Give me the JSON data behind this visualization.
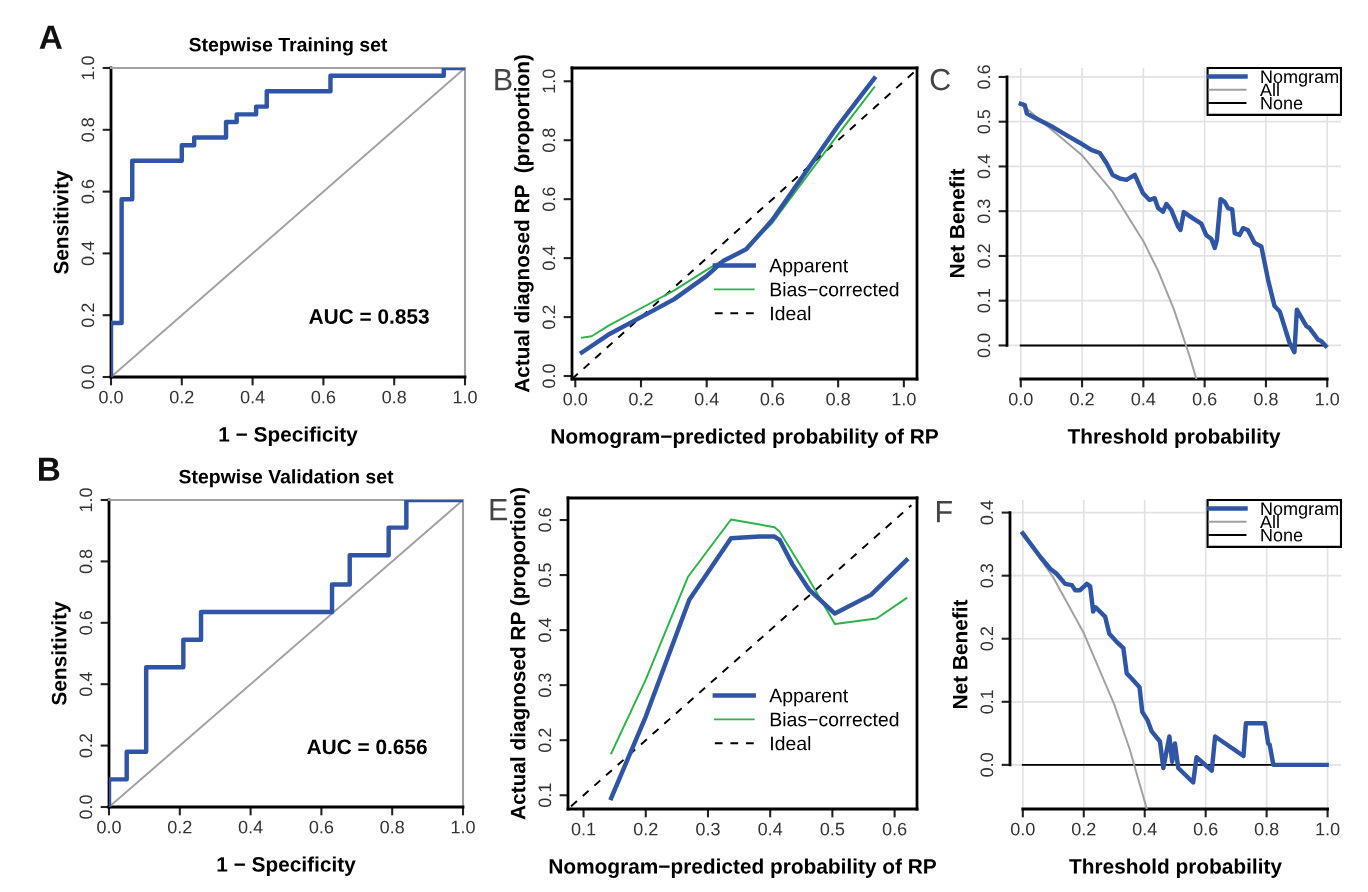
{
  "chart_data": [
    {
      "type": "line",
      "title": "Stepwise Training set",
      "xlabel": "1 − Specificity",
      "ylabel": "Sensitivity",
      "annotations": [
        "A",
        "AUC = 0.853"
      ],
      "xlim": [
        0,
        1
      ],
      "ylim": [
        0,
        1
      ],
      "xticks": [
        {
          "value": 0,
          "label": "0.0"
        },
        {
          "value": 0.2,
          "label": "0.2"
        },
        {
          "value": 0.4,
          "label": "0.4"
        },
        {
          "value": 0.6,
          "label": "0.6"
        },
        {
          "value": 0.8,
          "label": "0.8"
        },
        {
          "value": 1,
          "label": "1.0"
        }
      ],
      "yticks": [
        {
          "value": 0,
          "label": "0.0"
        },
        {
          "value": 0.2,
          "label": "0.2"
        },
        {
          "value": 0.4,
          "label": "0.4"
        },
        {
          "value": 0.6,
          "label": "0.6"
        },
        {
          "value": 0.8,
          "label": "0.8"
        },
        {
          "value": 1,
          "label": "1.0"
        }
      ],
      "series": [
        {
          "color": "#2f55a4",
          "x": [
            0,
            0,
            0.03,
            0.03,
            0.06,
            0.06,
            0.2,
            0.2,
            0.235,
            0.235,
            0.325,
            0.325,
            0.355,
            0.355,
            0.41,
            0.41,
            0.44,
            0.44,
            0.62,
            0.62,
            0.94,
            0.94,
            1
          ],
          "values": [
            0,
            0.175,
            0.175,
            0.575,
            0.575,
            0.7,
            0.7,
            0.75,
            0.75,
            0.775,
            0.775,
            0.825,
            0.825,
            0.85,
            0.85,
            0.875,
            0.875,
            0.925,
            0.925,
            0.975,
            0.975,
            1,
            1
          ]
        },
        {
          "color": "#a0a0a0",
          "x": [
            0,
            1
          ],
          "values": [
            0,
            1
          ]
        }
      ]
    },
    {
      "type": "line",
      "xlabel": "Nomogram−predicted probability of RP",
      "ylabel": "Actual diagnosed RP  (proportion)",
      "annotations": [
        "B"
      ],
      "legend": "bottom right",
      "xlim": [
        -0.01,
        1.04
      ],
      "ylim": [
        -0.01,
        1.045
      ],
      "xticks": [
        {
          "value": 0,
          "label": "0.0"
        },
        {
          "value": 0.2,
          "label": "0.2"
        },
        {
          "value": 0.4,
          "label": "0.4"
        },
        {
          "value": 0.6,
          "label": "0.6"
        },
        {
          "value": 0.8,
          "label": "0.8"
        },
        {
          "value": 1,
          "label": "1.0"
        }
      ],
      "yticks": [
        {
          "value": 0,
          "label": "0.0"
        },
        {
          "value": 0.2,
          "label": "0.2"
        },
        {
          "value": 0.4,
          "label": "0.4"
        },
        {
          "value": 0.6,
          "label": "0.6"
        },
        {
          "value": 0.8,
          "label": "0.8"
        },
        {
          "value": 1,
          "label": "1.0"
        }
      ],
      "series": [
        {
          "name": "Apparent",
          "color": "#2f55a4",
          "x": [
            0.02,
            0.1,
            0.2,
            0.3,
            0.4,
            0.45,
            0.52,
            0.6,
            0.7,
            0.8,
            0.91
          ],
          "values": [
            0.08,
            0.14,
            0.2,
            0.26,
            0.34,
            0.39,
            0.43,
            0.53,
            0.69,
            0.85,
            1.01
          ]
        },
        {
          "name": "Bias−corrected",
          "color": "#2db34a",
          "x": [
            0.02,
            0.05,
            0.1,
            0.2,
            0.3,
            0.4,
            0.46,
            0.52,
            0.6,
            0.7,
            0.8,
            0.91
          ],
          "values": [
            0.13,
            0.135,
            0.17,
            0.23,
            0.29,
            0.36,
            0.4,
            0.43,
            0.52,
            0.67,
            0.82,
            0.98
          ]
        },
        {
          "name": "Ideal",
          "color": "#000000",
          "line_style": "dashed",
          "x": [
            -0.01,
            1.04
          ],
          "values": [
            -0.01,
            1.04
          ]
        }
      ]
    },
    {
      "type": "line",
      "xlabel": "Threshold probability",
      "ylabel": "Net Benefit",
      "annotations": [
        "C"
      ],
      "legend": "top right",
      "grid": true,
      "xlim": [
        -0.045,
        1.045
      ],
      "ylim": [
        -0.075,
        0.62
      ],
      "xticks": [
        {
          "value": 0,
          "label": "0.0"
        },
        {
          "value": 0.2,
          "label": "0.2"
        },
        {
          "value": 0.4,
          "label": "0.4"
        },
        {
          "value": 0.6,
          "label": "0.6"
        },
        {
          "value": 0.8,
          "label": "0.8"
        },
        {
          "value": 1,
          "label": "1.0"
        }
      ],
      "yticks": [
        {
          "value": 0,
          "label": "0.0"
        },
        {
          "value": 0.1,
          "label": "0.1"
        },
        {
          "value": 0.2,
          "label": "0.2"
        },
        {
          "value": 0.3,
          "label": "0.3"
        },
        {
          "value": 0.4,
          "label": "0.4"
        },
        {
          "value": 0.5,
          "label": "0.5"
        },
        {
          "value": 0.6,
          "label": "0.6"
        }
      ],
      "series": [
        {
          "name": "Nomgram",
          "color": "#2f55a4",
          "x": [
            0,
            0.013,
            0.02,
            0.05,
            0.105,
            0.149,
            0.192,
            0.23,
            0.258,
            0.28,
            0.3,
            0.323,
            0.345,
            0.372,
            0.399,
            0.42,
            0.437,
            0.448,
            0.464,
            0.475,
            0.491,
            0.513,
            0.521,
            0.532,
            0.562,
            0.589,
            0.605,
            0.622,
            0.633,
            0.64,
            0.652,
            0.665,
            0.676,
            0.69,
            0.698,
            0.714,
            0.725,
            0.741,
            0.763,
            0.785,
            0.807,
            0.828,
            0.845,
            0.877,
            0.893,
            0.901,
            0.932,
            0.942,
            0.97,
            0.98,
            0.995
          ],
          "values": [
            0.54,
            0.537,
            0.518,
            0.507,
            0.488,
            0.47,
            0.453,
            0.437,
            0.43,
            0.407,
            0.381,
            0.373,
            0.37,
            0.381,
            0.34,
            0.325,
            0.329,
            0.307,
            0.299,
            0.316,
            0.303,
            0.266,
            0.258,
            0.298,
            0.284,
            0.272,
            0.247,
            0.238,
            0.218,
            0.236,
            0.327,
            0.321,
            0.307,
            0.304,
            0.251,
            0.247,
            0.262,
            0.258,
            0.229,
            0.221,
            0.147,
            0.088,
            0.076,
            0.006,
            -0.015,
            0.08,
            0.043,
            0.039,
            0.013,
            0.01,
            -0.001
          ]
        },
        {
          "name": "All",
          "color": "#a0a0a0",
          "x": [
            0,
            0.2,
            0.3,
            0.4,
            0.45,
            0.5,
            0.55,
            0.573
          ],
          "values": [
            0.54,
            0.425,
            0.343,
            0.233,
            0.164,
            0.08,
            -0.022,
            -0.075
          ]
        },
        {
          "name": "None",
          "color": "#000000",
          "x": [
            0,
            0.99
          ],
          "values": [
            0,
            0
          ]
        }
      ]
    },
    {
      "type": "line",
      "title": "Stepwise Validation set",
      "xlabel": "1 − Specificity",
      "ylabel": "Sensitivity",
      "annotations": [
        "B",
        "AUC = 0.656"
      ],
      "xlim": [
        0,
        1
      ],
      "ylim": [
        0,
        1
      ],
      "xticks": [
        {
          "value": 0,
          "label": "0.0"
        },
        {
          "value": 0.2,
          "label": "0.2"
        },
        {
          "value": 0.4,
          "label": "0.4"
        },
        {
          "value": 0.6,
          "label": "0.6"
        },
        {
          "value": 0.8,
          "label": "0.8"
        },
        {
          "value": 1,
          "label": "1.0"
        }
      ],
      "yticks": [
        {
          "value": 0,
          "label": "0.0"
        },
        {
          "value": 0.2,
          "label": "0.2"
        },
        {
          "value": 0.4,
          "label": "0.4"
        },
        {
          "value": 0.6,
          "label": "0.6"
        },
        {
          "value": 0.8,
          "label": "0.8"
        },
        {
          "value": 1,
          "label": "1.0"
        }
      ],
      "series": [
        {
          "color": "#2f55a4",
          "x": [
            0,
            0,
            0.05,
            0.05,
            0.105,
            0.105,
            0.21,
            0.21,
            0.26,
            0.26,
            0.63,
            0.63,
            0.68,
            0.68,
            0.79,
            0.79,
            0.84,
            0.84,
            1
          ],
          "values": [
            0,
            0.09,
            0.09,
            0.18,
            0.18,
            0.455,
            0.455,
            0.545,
            0.545,
            0.635,
            0.635,
            0.725,
            0.725,
            0.82,
            0.82,
            0.91,
            0.91,
            1,
            1
          ]
        },
        {
          "color": "#a0a0a0",
          "x": [
            0,
            1
          ],
          "values": [
            0,
            1
          ]
        }
      ]
    },
    {
      "type": "line",
      "xlabel": "Nomogram−predicted probability of RP",
      "ylabel": "Actual diagnosed RP (proportion)",
      "annotations": [
        "E"
      ],
      "legend": "bottom right",
      "xlim": [
        0.075,
        0.636
      ],
      "ylim": [
        0.075,
        0.64
      ],
      "xticks": [
        0.1,
        0.2,
        0.3,
        0.4,
        0.5,
        0.6
      ],
      "yticks": [
        0.1,
        0.2,
        0.3,
        0.4,
        0.5,
        0.6
      ],
      "series": [
        {
          "name": "Apparent",
          "color": "#2f55a4",
          "x": [
            0.1445,
            0.2,
            0.27,
            0.337,
            0.383,
            0.407,
            0.415,
            0.436,
            0.463,
            0.504,
            0.562,
            0.619
          ],
          "values": [
            0.095,
            0.243,
            0.455,
            0.567,
            0.57,
            0.57,
            0.564,
            0.519,
            0.473,
            0.43,
            0.464,
            0.527
          ]
        },
        {
          "name": "Bias−corrected",
          "color": "#2db34a",
          "x": [
            0.1445,
            0.2,
            0.268,
            0.337,
            0.407,
            0.415,
            0.463,
            0.504,
            0.571,
            0.619
          ],
          "values": [
            0.176,
            0.31,
            0.497,
            0.601,
            0.587,
            0.579,
            0.491,
            0.411,
            0.421,
            0.458
          ]
        },
        {
          "name": "Ideal",
          "color": "#000000",
          "line_style": "dashed",
          "x": [
            0.08,
            0.627
          ],
          "values": [
            0.08,
            0.627
          ]
        }
      ]
    },
    {
      "type": "line",
      "xlabel": "Threshold probability",
      "ylabel": "Net Benefit",
      "annotations": [
        "F"
      ],
      "legend": "top right",
      "grid": true,
      "xlim": [
        -0.042,
        1.044
      ],
      "ylim": [
        -0.07,
        0.42
      ],
      "xticks": [
        {
          "value": 0,
          "label": "0.0"
        },
        {
          "value": 0.2,
          "label": "0.2"
        },
        {
          "value": 0.4,
          "label": "0.4"
        },
        {
          "value": 0.6,
          "label": "0.6"
        },
        {
          "value": 0.8,
          "label": "0.8"
        },
        {
          "value": 1,
          "label": "1.0"
        }
      ],
      "yticks": [
        {
          "value": 0,
          "label": "0.0"
        },
        {
          "value": 0.1,
          "label": "0.1"
        },
        {
          "value": 0.2,
          "label": "0.2"
        },
        {
          "value": 0.3,
          "label": "0.3"
        },
        {
          "value": 0.4,
          "label": "0.4"
        }
      ],
      "series": [
        {
          "name": "Nomgram",
          "color": "#2f55a4",
          "x": [
            0,
            0.057,
            0.09,
            0.111,
            0.139,
            0.161,
            0.172,
            0.188,
            0.21,
            0.221,
            0.231,
            0.238,
            0.27,
            0.284,
            0.308,
            0.33,
            0.341,
            0.357,
            0.383,
            0.392,
            0.409,
            0.423,
            0.45,
            0.461,
            0.481,
            0.49,
            0.499,
            0.51,
            0.559,
            0.57,
            0.62,
            0.631,
            0.724,
            0.732,
            0.795,
            0.805,
            0.81,
            0.822,
            0.997
          ],
          "values": [
            0.367,
            0.33,
            0.311,
            0.303,
            0.287,
            0.285,
            0.277,
            0.277,
            0.287,
            0.283,
            0.243,
            0.25,
            0.235,
            0.208,
            0.195,
            0.185,
            0.145,
            0.137,
            0.123,
            0.084,
            0.071,
            0.053,
            0.037,
            -0.005,
            0.045,
            0.005,
            0.034,
            -0.005,
            -0.028,
            0.012,
            -0.009,
            0.045,
            0.014,
            0.066,
            0.066,
            0.034,
            0.032,
            0,
            0
          ]
        },
        {
          "name": "All",
          "color": "#a0a0a0",
          "x": [
            0,
            0.1,
            0.2,
            0.3,
            0.35,
            0.407
          ],
          "values": [
            0.367,
            0.297,
            0.209,
            0.096,
            0.026,
            -0.07
          ]
        },
        {
          "name": "None",
          "color": "#000000",
          "x": [
            0,
            0.99
          ],
          "values": [
            0,
            0
          ]
        }
      ]
    }
  ]
}
